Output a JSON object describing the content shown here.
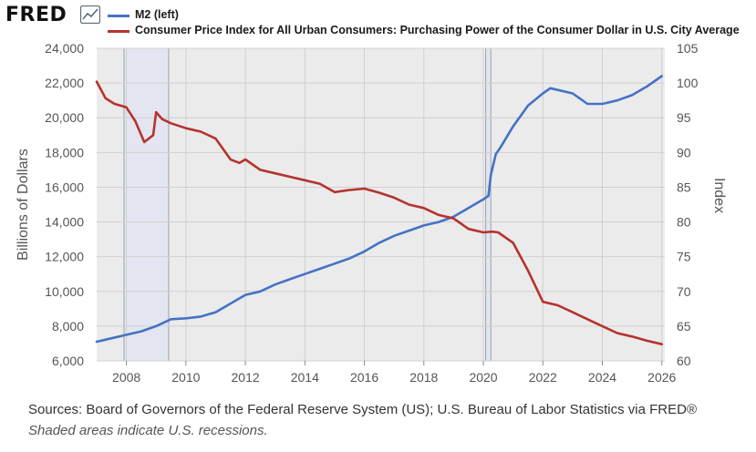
{
  "header": {
    "logo_text": "FRED",
    "legend": [
      {
        "label": "M2 (left)",
        "color": "#4572c4"
      },
      {
        "label": "Consumer Price Index for All Urban Consumers: Purchasing Power of the Consumer Dollar in U.S. City Average",
        "color": "#b5332e"
      }
    ]
  },
  "footer": {
    "sources": "Sources: Board of Governors of the Federal Reserve System (US); U.S. Bureau of Labor Statistics via FRED®",
    "note": "Shaded areas indicate U.S. recessions."
  },
  "chart_data": {
    "type": "line",
    "title": "",
    "xlabel": "",
    "ylabel_left": "Billions of Dollars",
    "ylabel_right": "Index",
    "xlim": [
      2007.0,
      2026.1
    ],
    "ylim_left": [
      6000,
      24000
    ],
    "ylim_right": [
      60,
      105
    ],
    "x_ticks": [
      2008,
      2010,
      2012,
      2014,
      2016,
      2018,
      2020,
      2022,
      2024,
      2026
    ],
    "y_ticks_left": [
      "6,000",
      "8,000",
      "10,000",
      "12,000",
      "14,000",
      "16,000",
      "18,000",
      "20,000",
      "22,000",
      "24,000"
    ],
    "y_ticks_left_values": [
      6000,
      8000,
      10000,
      12000,
      14000,
      16000,
      18000,
      20000,
      22000,
      24000
    ],
    "y_ticks_right": [
      60,
      65,
      70,
      75,
      80,
      85,
      90,
      95,
      100,
      105
    ],
    "grid": true,
    "recessions": [
      [
        2007.92,
        2009.42
      ],
      [
        2020.08,
        2020.25
      ]
    ],
    "series": [
      {
        "name": "M2 (left)",
        "axis": "left",
        "color": "#4572c4",
        "x": [
          2007.0,
          2007.5,
          2008.0,
          2008.5,
          2009.0,
          2009.5,
          2010.0,
          2010.5,
          2011.0,
          2011.5,
          2012.0,
          2012.5,
          2013.0,
          2013.5,
          2014.0,
          2014.5,
          2015.0,
          2015.5,
          2016.0,
          2016.5,
          2017.0,
          2017.5,
          2018.0,
          2018.5,
          2019.0,
          2019.5,
          2020.0,
          2020.17,
          2020.25,
          2020.42,
          2020.58,
          2021.0,
          2021.5,
          2022.0,
          2022.25,
          2022.5,
          2023.0,
          2023.5,
          2024.0,
          2024.5,
          2025.0,
          2025.5,
          2026.0
        ],
        "y": [
          7100,
          7300,
          7500,
          7700,
          8000,
          8400,
          8450,
          8550,
          8800,
          9300,
          9800,
          10000,
          10400,
          10700,
          11000,
          11300,
          11600,
          11900,
          12300,
          12800,
          13200,
          13500,
          13800,
          14000,
          14300,
          14800,
          15300,
          15500,
          16700,
          17900,
          18300,
          19500,
          20700,
          21400,
          21700,
          21600,
          21400,
          20800,
          20800,
          21000,
          21300,
          21800,
          22400
        ]
      },
      {
        "name": "Consumer Price Index for All Urban Consumers: Purchasing Power of the Consumer Dollar in U.S. City Average",
        "axis": "right",
        "color": "#b5332e",
        "x": [
          2007.0,
          2007.3,
          2007.6,
          2008.0,
          2008.3,
          2008.6,
          2008.9,
          2009.0,
          2009.2,
          2009.5,
          2010.0,
          2010.5,
          2011.0,
          2011.5,
          2011.8,
          2012.0,
          2012.5,
          2013.0,
          2013.5,
          2014.0,
          2014.5,
          2015.0,
          2015.5,
          2016.0,
          2016.5,
          2017.0,
          2017.5,
          2018.0,
          2018.5,
          2019.0,
          2019.5,
          2020.0,
          2020.3,
          2020.5,
          2021.0,
          2021.5,
          2022.0,
          2022.5,
          2023.0,
          2023.5,
          2024.0,
          2024.5,
          2025.0,
          2025.5,
          2026.0
        ],
        "y": [
          100.2,
          97.8,
          97.0,
          96.5,
          94.5,
          91.5,
          92.5,
          95.8,
          94.8,
          94.2,
          93.5,
          93.0,
          92.0,
          89.0,
          88.5,
          89.0,
          87.5,
          87.0,
          86.5,
          86.0,
          85.5,
          84.3,
          84.6,
          84.8,
          84.2,
          83.5,
          82.5,
          82.0,
          81.0,
          80.5,
          79.0,
          78.5,
          78.6,
          78.5,
          77.0,
          73.0,
          68.5,
          68.0,
          67.0,
          66.0,
          65.0,
          64.0,
          63.5,
          62.9,
          62.4
        ]
      }
    ]
  }
}
